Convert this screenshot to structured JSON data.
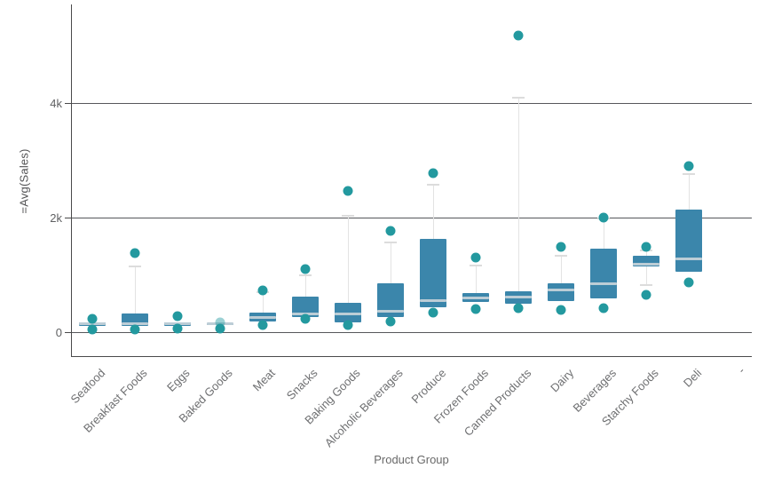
{
  "chart": {
    "y_axis_title": "=Avg(Sales)",
    "x_axis_title": "Product Group",
    "y_tick_labels": [
      "0",
      "2k",
      "4k"
    ],
    "clipped_label_fragment": "-"
  },
  "chart_data": {
    "type": "box",
    "title": "",
    "xlabel": "Product Group",
    "ylabel": "=Avg(Sales)",
    "ylim": [
      0,
      5700
    ],
    "y_ticks": [
      0,
      2000,
      4000
    ],
    "grid": true,
    "legend": false,
    "categories": [
      "Seafood",
      "Breakfast Foods",
      "Eggs",
      "Baked Goods",
      "Meat",
      "Snacks",
      "Baking Goods",
      "Alcoholic Beverages",
      "Produce",
      "Frozen Foods",
      "Canned Products",
      "Dairy",
      "Beverages",
      "Starchy Foods",
      "Deli"
    ],
    "boxes": [
      {
        "category": "Seafood",
        "low_outlier": 45,
        "q1": 110,
        "median": 150,
        "q3": 170,
        "high_outlier": 230
      },
      {
        "category": "Breakfast Foods",
        "low_outlier": 46,
        "q1": 113,
        "median": 155,
        "q3": 320,
        "high_whisker": 1147,
        "high_outlier": 1380
      },
      {
        "category": "Eggs",
        "low_outlier": 62,
        "q1": 113,
        "median": 150,
        "q3": 166,
        "high_outlier": 280
      },
      {
        "category": "Baked Goods",
        "low_outlier": 62,
        "q1": 124,
        "median": 150,
        "q3": 160,
        "high_outlier": 170,
        "high_outlier_faded": true
      },
      {
        "category": "Meat",
        "low_outlier": 124,
        "q1": 191,
        "median": 268,
        "q3": 337,
        "high_whisker": 700,
        "high_outlier": 724
      },
      {
        "category": "Snacks",
        "low_outlier": 228,
        "q1": 268,
        "median": 321,
        "q3": 620,
        "high_whisker": 992,
        "high_outlier": 1098
      },
      {
        "category": "Baking Goods",
        "low_outlier": 129,
        "q1": 175,
        "median": 321,
        "q3": 512,
        "high_whisker": 2034,
        "high_outlier": 2469
      },
      {
        "category": "Alcoholic Beverages",
        "low_outlier": 191,
        "q1": 269,
        "median": 372,
        "q3": 853,
        "high_whisker": 1571,
        "high_outlier": 1767
      },
      {
        "category": "Produce",
        "low_outlier": 337,
        "q1": 439,
        "median": 564,
        "q3": 1628,
        "high_whisker": 2573,
        "high_outlier": 2779
      },
      {
        "category": "Frozen Foods",
        "low_outlier": 399,
        "q1": 528,
        "median": 606,
        "q3": 683,
        "high_whisker": 1158,
        "high_outlier": 1302
      },
      {
        "category": "Canned Products",
        "low_outlier": 424,
        "q1": 502,
        "median": 621,
        "q3": 709,
        "high_whisker": 4093,
        "high_outlier": 5186
      },
      {
        "category": "Dairy",
        "low_outlier": 383,
        "q1": 539,
        "median": 745,
        "q3": 853,
        "high_whisker": 1329,
        "high_outlier": 1484
      },
      {
        "category": "Beverages",
        "low_outlier": 414,
        "q1": 589,
        "median": 848,
        "q3": 1458,
        "high_whisker": 1983,
        "high_outlier": 2001
      },
      {
        "category": "Starchy Foods",
        "low_outlier": 656,
        "low_whisker": 827,
        "q1": 1147,
        "median": 1199,
        "q3": 1329,
        "high_whisker": 1432,
        "high_outlier": 1494
      },
      {
        "category": "Deli",
        "low_outlier": 874,
        "q1": 1056,
        "median": 1289,
        "q3": 2132,
        "high_whisker": 2753,
        "high_outlier": 2903
      }
    ],
    "colors": {
      "box_fill": "#3b86ab",
      "median_line": "#bccdd6",
      "whisker": "#e3e3e3",
      "whisker_cap": "#dcdcdc",
      "outlier_dot": "#23999f",
      "gridline": "#56575b",
      "axis_line": "#4a4a4b",
      "tick_label": "#5f6062",
      "category_label": "#6e6f71"
    }
  }
}
